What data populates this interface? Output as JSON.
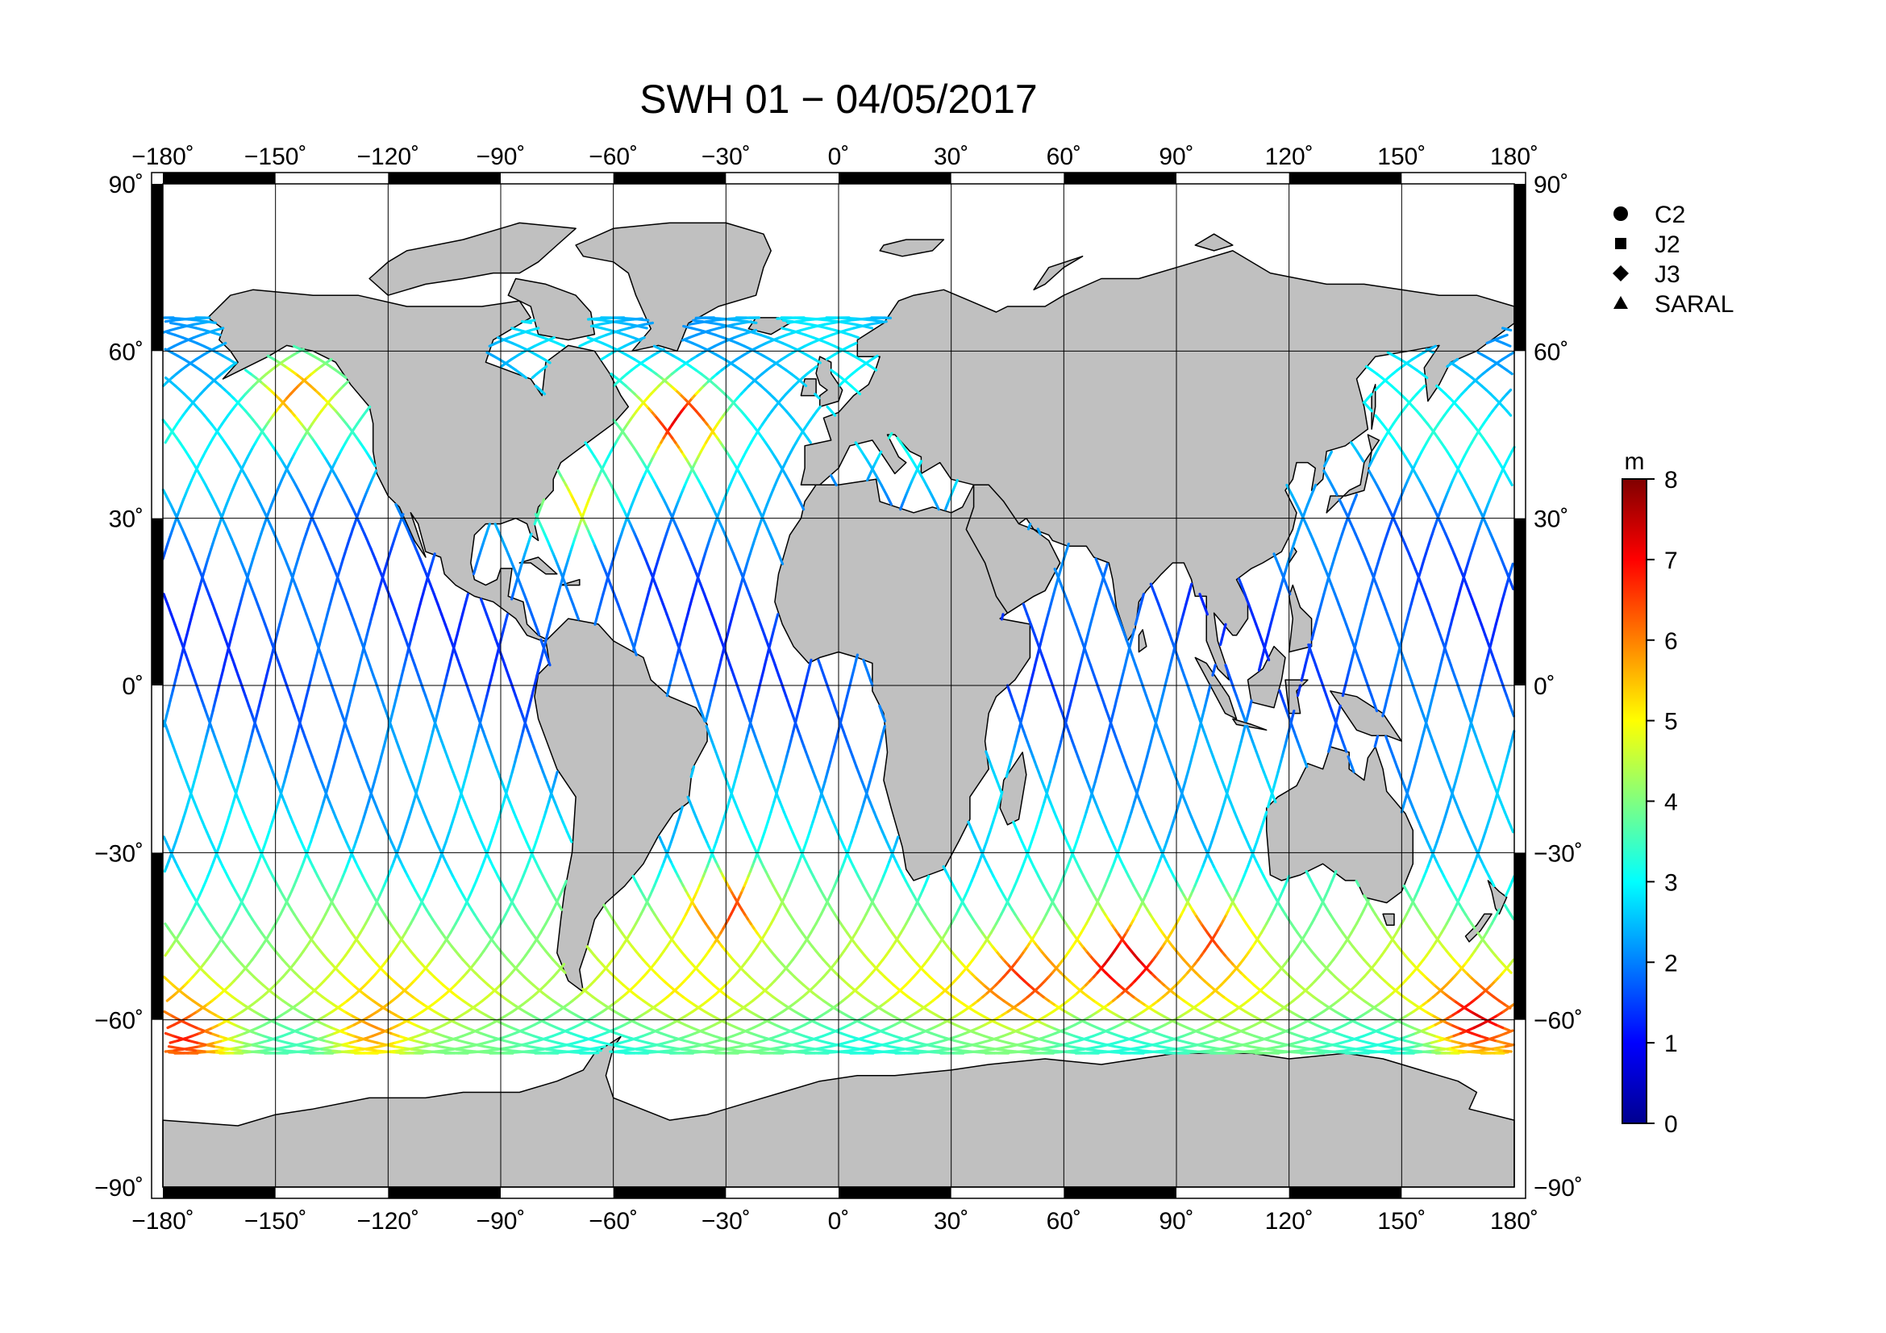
{
  "title": "SWH 01 − 04/05/2017",
  "map": {
    "projection": "equirectangular",
    "lon_range": [
      -180,
      180
    ],
    "lat_range": [
      -90,
      90
    ],
    "grid": true,
    "land_color": "#c0c0c0",
    "ocean_color": "#ffffff",
    "lon_ticks": [
      "−180˚",
      "−150˚",
      "−120˚",
      "−90˚",
      "−60˚",
      "−30˚",
      "0˚",
      "30˚",
      "60˚",
      "90˚",
      "120˚",
      "150˚",
      "180˚"
    ],
    "lat_ticks": [
      "90˚",
      "60˚",
      "30˚",
      "0˚",
      "−30˚",
      "−60˚",
      "−90˚"
    ]
  },
  "legend": {
    "placement": "top-right",
    "items": [
      {
        "label": "C2",
        "marker": "circle"
      },
      {
        "label": "J2",
        "marker": "square"
      },
      {
        "label": "J3",
        "marker": "diamond"
      },
      {
        "label": "SARAL",
        "marker": "triangle"
      }
    ]
  },
  "colorbar": {
    "unit": "m",
    "min": 0,
    "max": 8,
    "ticks": [
      "0",
      "1",
      "2",
      "3",
      "4",
      "5",
      "6",
      "7",
      "8"
    ],
    "colormap": [
      "#00008f",
      "#0000ff",
      "#0080ff",
      "#00ffff",
      "#80ff80",
      "#ffff00",
      "#ff8000",
      "#ff0000",
      "#800000"
    ]
  },
  "chart_data": {
    "type": "map",
    "variable": "SWH",
    "unit": "m",
    "xlabel": "",
    "ylabel": "",
    "xlim": [
      -180,
      180
    ],
    "ylim": [
      -90,
      90
    ],
    "value_range": [
      0,
      8
    ],
    "track_coverage_lat": [
      -66,
      66
    ],
    "swh_by_latitude": [
      {
        "lat": 60,
        "swh": 2.5
      },
      {
        "lat": 45,
        "swh": 3.0
      },
      {
        "lat": 30,
        "swh": 2.0
      },
      {
        "lat": 15,
        "swh": 1.6
      },
      {
        "lat": 0,
        "swh": 1.7
      },
      {
        "lat": -15,
        "swh": 2.3
      },
      {
        "lat": -30,
        "swh": 2.8
      },
      {
        "lat": -45,
        "swh": 4.2
      },
      {
        "lat": -55,
        "swh": 4.8
      },
      {
        "lat": -63,
        "swh": 3.6
      }
    ],
    "high_swh_regions": [
      {
        "lon": -42,
        "lat": 48,
        "swh": 7.0
      },
      {
        "lon": -70,
        "lat": 33,
        "swh": 5.5
      },
      {
        "lon": -145,
        "lat": 52,
        "swh": 6.0
      },
      {
        "lon": 75,
        "lat": -50,
        "swh": 7.5
      },
      {
        "lon": 50,
        "lat": -52,
        "swh": 7.0
      },
      {
        "lon": 100,
        "lat": -45,
        "swh": 6.5
      },
      {
        "lon": 170,
        "lat": -60,
        "swh": 7.0
      },
      {
        "lon": -30,
        "lat": -40,
        "swh": 7.0
      },
      {
        "lon": -125,
        "lat": -62,
        "swh": 6.0
      },
      {
        "lon": -175,
        "lat": -63,
        "swh": 6.5
      }
    ]
  }
}
